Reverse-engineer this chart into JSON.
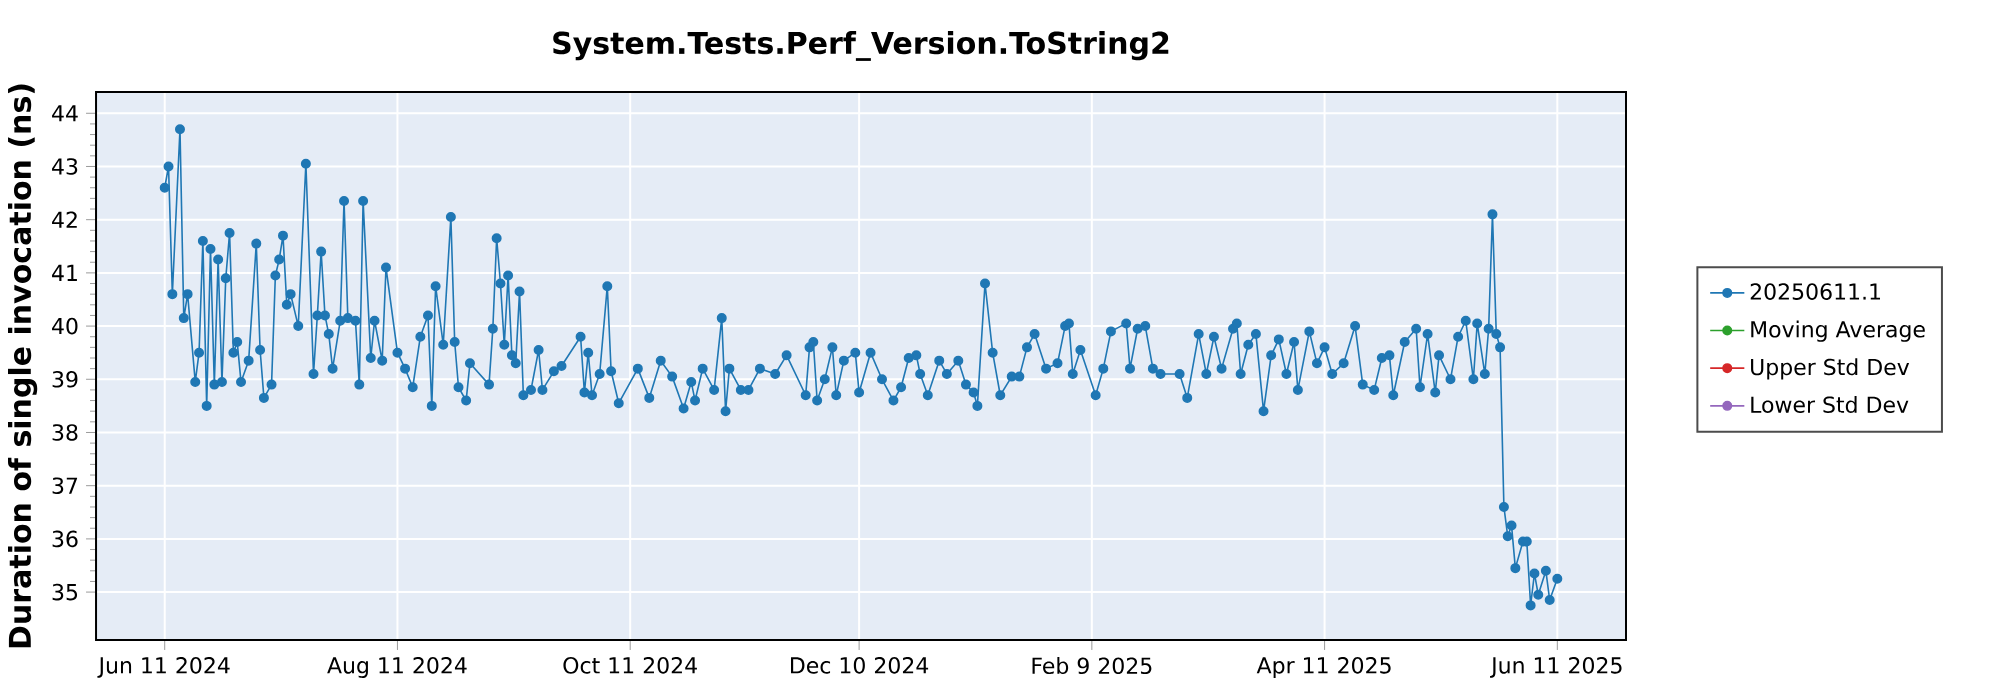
{
  "chart_data": {
    "type": "line",
    "title": "System.Tests.Perf_Version.ToString2",
    "ylabel": "Duration of single invocation (ns)",
    "x": [
      "2024-06-11",
      "2024-06-12",
      "2024-06-13",
      "2024-06-15",
      "2024-06-16",
      "2024-06-17",
      "2024-06-19",
      "2024-06-20",
      "2024-06-21",
      "2024-06-22",
      "2024-06-23",
      "2024-06-24",
      "2024-06-25",
      "2024-06-26",
      "2024-06-27",
      "2024-06-28",
      "2024-06-29",
      "2024-06-30",
      "2024-07-01",
      "2024-07-03",
      "2024-07-05",
      "2024-07-06",
      "2024-07-07",
      "2024-07-09",
      "2024-07-10",
      "2024-07-11",
      "2024-07-12",
      "2024-07-13",
      "2024-07-14",
      "2024-07-16",
      "2024-07-18",
      "2024-07-20",
      "2024-07-21",
      "2024-07-22",
      "2024-07-23",
      "2024-07-24",
      "2024-07-25",
      "2024-07-27",
      "2024-07-28",
      "2024-07-29",
      "2024-07-31",
      "2024-08-01",
      "2024-08-02",
      "2024-08-04",
      "2024-08-05",
      "2024-08-07",
      "2024-08-08",
      "2024-08-11",
      "2024-08-13",
      "2024-08-15",
      "2024-08-17",
      "2024-08-19",
      "2024-08-20",
      "2024-08-21",
      "2024-08-23",
      "2024-08-25",
      "2024-08-26",
      "2024-08-27",
      "2024-08-29",
      "2024-08-30",
      "2024-09-04",
      "2024-09-05",
      "2024-09-06",
      "2024-09-07",
      "2024-09-08",
      "2024-09-09",
      "2024-09-10",
      "2024-09-11",
      "2024-09-12",
      "2024-09-13",
      "2024-09-15",
      "2024-09-17",
      "2024-09-18",
      "2024-09-21",
      "2024-09-23",
      "2024-09-28",
      "2024-09-29",
      "2024-09-30",
      "2024-10-01",
      "2024-10-03",
      "2024-10-05",
      "2024-10-06",
      "2024-10-08",
      "2024-10-13",
      "2024-10-16",
      "2024-10-19",
      "2024-10-22",
      "2024-10-25",
      "2024-10-27",
      "2024-10-28",
      "2024-10-30",
      "2024-11-02",
      "2024-11-04",
      "2024-11-05",
      "2024-11-06",
      "2024-11-09",
      "2024-11-11",
      "2024-11-14",
      "2024-11-18",
      "2024-11-21",
      "2024-11-26",
      "2024-11-27",
      "2024-11-28",
      "2024-11-29",
      "2024-12-01",
      "2024-12-03",
      "2024-12-04",
      "2024-12-06",
      "2024-12-09",
      "2024-12-10",
      "2024-12-13",
      "2024-12-16",
      "2024-12-19",
      "2024-12-21",
      "2024-12-23",
      "2024-12-25",
      "2024-12-26",
      "2024-12-28",
      "2024-12-31",
      "2025-01-02",
      "2025-01-05",
      "2025-01-07",
      "2025-01-09",
      "2025-01-10",
      "2025-01-12",
      "2025-01-14",
      "2025-01-16",
      "2025-01-19",
      "2025-01-21",
      "2025-01-23",
      "2025-01-25",
      "2025-01-28",
      "2025-01-31",
      "2025-02-02",
      "2025-02-03",
      "2025-02-04",
      "2025-02-06",
      "2025-02-10",
      "2025-02-12",
      "2025-02-14",
      "2025-02-18",
      "2025-02-19",
      "2025-02-21",
      "2025-02-23",
      "2025-02-25",
      "2025-02-27",
      "2025-03-04",
      "2025-03-06",
      "2025-03-09",
      "2025-03-11",
      "2025-03-13",
      "2025-03-15",
      "2025-03-18",
      "2025-03-19",
      "2025-03-20",
      "2025-03-22",
      "2025-03-24",
      "2025-03-26",
      "2025-03-28",
      "2025-03-30",
      "2025-04-01",
      "2025-04-03",
      "2025-04-04",
      "2025-04-07",
      "2025-04-09",
      "2025-04-11",
      "2025-04-13",
      "2025-04-16",
      "2025-04-19",
      "2025-04-21",
      "2025-04-24",
      "2025-04-26",
      "2025-04-28",
      "2025-04-29",
      "2025-05-02",
      "2025-05-05",
      "2025-05-06",
      "2025-05-08",
      "2025-05-10",
      "2025-05-11",
      "2025-05-14",
      "2025-05-16",
      "2025-05-18",
      "2025-05-20",
      "2025-05-21",
      "2025-05-23",
      "2025-05-24",
      "2025-05-25",
      "2025-05-26",
      "2025-05-27",
      "2025-05-28",
      "2025-05-29",
      "2025-05-30",
      "2025-05-31",
      "2025-06-02",
      "2025-06-03",
      "2025-06-04",
      "2025-06-05",
      "2025-06-06",
      "2025-06-08",
      "2025-06-09",
      "2025-06-11"
    ],
    "series": [
      {
        "name": "20250611.1",
        "color": "#1f77b4",
        "values": [
          42.6,
          43.0,
          40.6,
          43.7,
          40.15,
          40.6,
          38.95,
          39.5,
          41.6,
          38.5,
          41.45,
          38.9,
          41.25,
          38.95,
          40.9,
          41.75,
          39.5,
          39.7,
          38.95,
          39.35,
          41.55,
          39.55,
          38.65,
          38.9,
          40.95,
          41.25,
          41.7,
          40.4,
          40.6,
          40.0,
          43.05,
          39.1,
          40.2,
          41.4,
          40.2,
          39.85,
          39.2,
          40.1,
          42.35,
          40.15,
          40.1,
          38.9,
          42.35,
          39.4,
          40.1,
          39.35,
          41.1,
          39.5,
          39.2,
          38.85,
          39.8,
          40.2,
          38.5,
          40.75,
          39.65,
          42.05,
          39.7,
          38.85,
          38.6,
          39.3,
          38.9,
          39.95,
          41.65,
          40.8,
          39.65,
          40.95,
          39.45,
          39.3,
          40.65,
          38.7,
          38.8,
          39.55,
          38.8,
          39.15,
          39.25,
          39.8,
          38.75,
          39.5,
          38.7,
          39.1,
          40.75,
          39.15,
          38.55,
          39.2,
          38.65,
          39.35,
          39.05,
          38.45,
          38.95,
          38.6,
          39.2,
          38.8,
          40.15,
          38.4,
          39.2,
          38.8,
          38.8,
          39.2,
          39.1,
          39.45,
          38.7,
          39.6,
          39.7,
          38.6,
          39.0,
          39.6,
          38.7,
          39.35,
          39.5,
          38.75,
          39.5,
          39.0,
          38.6,
          38.85,
          39.4,
          39.45,
          39.1,
          38.7,
          39.35,
          39.1,
          39.35,
          38.9,
          38.75,
          38.5,
          40.8,
          39.5,
          38.7,
          39.05,
          39.05,
          39.6,
          39.85,
          39.2,
          39.3,
          40.0,
          40.05,
          39.1,
          39.55,
          38.7,
          39.2,
          39.9,
          40.05,
          39.2,
          39.95,
          40.0,
          39.2,
          39.1,
          39.1,
          38.65,
          39.85,
          39.1,
          39.8,
          39.2,
          39.95,
          40.05,
          39.1,
          39.65,
          39.85,
          38.4,
          39.45,
          39.75,
          39.1,
          39.7,
          38.8,
          39.9,
          39.3,
          39.6,
          39.1,
          39.3,
          40.0,
          38.9,
          38.8,
          39.4,
          39.45,
          38.7,
          39.7,
          39.95,
          38.85,
          39.85,
          38.75,
          39.45,
          39.0,
          39.8,
          40.1,
          39.0,
          40.05,
          39.1,
          39.95,
          42.1,
          39.85,
          39.6,
          36.6,
          36.05,
          36.25,
          35.45,
          35.95,
          35.95,
          34.75,
          35.35,
          34.95,
          35.4,
          34.85,
          35.25
        ]
      },
      {
        "name": "Moving Average",
        "color": "#2ca02c",
        "values": [
          null,
          null,
          null,
          null,
          null,
          null,
          null,
          null,
          null,
          null,
          null,
          null,
          null,
          null,
          null,
          null,
          null,
          null,
          null,
          null,
          null,
          null,
          null,
          null,
          null,
          null,
          null,
          null,
          null,
          null,
          null,
          null,
          null,
          null,
          null,
          null,
          null,
          null,
          null,
          null,
          null,
          null,
          null,
          null,
          null,
          null,
          null,
          null,
          null,
          null,
          null,
          null,
          null,
          null,
          null,
          null,
          null,
          null,
          null,
          null,
          null,
          null,
          null,
          null,
          null,
          null,
          null,
          null,
          null,
          null,
          null,
          null,
          null,
          null,
          null,
          null,
          null,
          null,
          null,
          null,
          null,
          null,
          null,
          null,
          null,
          null,
          null,
          null,
          null,
          null,
          null,
          null,
          null,
          null,
          null,
          null,
          null,
          null,
          null,
          null,
          null,
          null,
          null,
          null,
          null,
          null,
          null,
          null,
          null,
          null,
          null,
          null,
          null,
          null,
          null,
          null,
          null,
          null,
          null,
          null,
          null,
          null,
          null,
          null,
          null,
          null,
          null,
          null,
          null,
          null,
          null,
          null,
          null,
          null,
          null,
          null,
          null,
          null,
          null,
          null,
          null,
          null,
          null,
          null,
          null,
          null,
          null,
          null,
          null,
          null,
          null,
          null,
          null,
          null,
          null,
          null,
          null,
          null,
          null,
          null,
          null,
          null,
          null,
          null,
          null,
          null,
          null,
          null,
          null,
          null,
          null,
          null,
          null,
          null,
          null,
          null,
          null,
          null,
          null,
          null,
          null,
          null,
          null,
          null,
          null,
          null,
          null,
          null,
          null,
          null,
          null,
          null,
          null,
          null,
          null,
          null,
          null,
          null,
          null,
          null,
          null,
          null
        ]
      },
      {
        "name": "Upper Std Dev",
        "color": "#d62728",
        "values": [
          null,
          null,
          null,
          null,
          null,
          null,
          null,
          null,
          null,
          null,
          null,
          null,
          null,
          null,
          null,
          null,
          null,
          null,
          null,
          null,
          null,
          null,
          null,
          null,
          null,
          null,
          null,
          null,
          null,
          null,
          null,
          null,
          null,
          null,
          null,
          null,
          null,
          null,
          null,
          null,
          null,
          null,
          null,
          null,
          null,
          null,
          null,
          null,
          null,
          null,
          null,
          null,
          null,
          null,
          null,
          null,
          null,
          null,
          null,
          null,
          null,
          null,
          null,
          null,
          null,
          null,
          null,
          null,
          null,
          null,
          null,
          null,
          null,
          null,
          null,
          null,
          null,
          null,
          null,
          null,
          null,
          null,
          null,
          null,
          null,
          null,
          null,
          null,
          null,
          null,
          null,
          null,
          null,
          null,
          null,
          null,
          null,
          null,
          null,
          null,
          null,
          null,
          null,
          null,
          null,
          null,
          null,
          null,
          null,
          null,
          null,
          null,
          null,
          null,
          null,
          null,
          null,
          null,
          null,
          null,
          null,
          null,
          null,
          null,
          null,
          null,
          null,
          null,
          null,
          null,
          null,
          null,
          null,
          null,
          null,
          null,
          null,
          null,
          null,
          null,
          null,
          null,
          null,
          null,
          null,
          null,
          null,
          null,
          null,
          null,
          null,
          null,
          null,
          null,
          null,
          null,
          null,
          null,
          null,
          null,
          null,
          null,
          null,
          null,
          null,
          null,
          null,
          null,
          null,
          null,
          null,
          null,
          null,
          null,
          null,
          null,
          null,
          null,
          null,
          null,
          null,
          null,
          null,
          null,
          null,
          null,
          null,
          null,
          null,
          null,
          null,
          null,
          null,
          null,
          null,
          null,
          null,
          null,
          null,
          null,
          null,
          null
        ]
      },
      {
        "name": "Lower Std Dev",
        "color": "#9467bd",
        "values": [
          null,
          null,
          null,
          null,
          null,
          null,
          null,
          null,
          null,
          null,
          null,
          null,
          null,
          null,
          null,
          null,
          null,
          null,
          null,
          null,
          null,
          null,
          null,
          null,
          null,
          null,
          null,
          null,
          null,
          null,
          null,
          null,
          null,
          null,
          null,
          null,
          null,
          null,
          null,
          null,
          null,
          null,
          null,
          null,
          null,
          null,
          null,
          null,
          null,
          null,
          null,
          null,
          null,
          null,
          null,
          null,
          null,
          null,
          null,
          null,
          null,
          null,
          null,
          null,
          null,
          null,
          null,
          null,
          null,
          null,
          null,
          null,
          null,
          null,
          null,
          null,
          null,
          null,
          null,
          null,
          null,
          null,
          null,
          null,
          null,
          null,
          null,
          null,
          null,
          null,
          null,
          null,
          null,
          null,
          null,
          null,
          null,
          null,
          null,
          null,
          null,
          null,
          null,
          null,
          null,
          null,
          null,
          null,
          null,
          null,
          null,
          null,
          null,
          null,
          null,
          null,
          null,
          null,
          null,
          null,
          null,
          null,
          null,
          null,
          null,
          null,
          null,
          null,
          null,
          null,
          null,
          null,
          null,
          null,
          null,
          null,
          null,
          null,
          null,
          null,
          null,
          null,
          null,
          null,
          null,
          null,
          null,
          null,
          null,
          null,
          null,
          null,
          null,
          null,
          null,
          null,
          null,
          null,
          null,
          null,
          null,
          null,
          null,
          null,
          null,
          null,
          null,
          null,
          null,
          null,
          null,
          null,
          null,
          null,
          null,
          null,
          null,
          null,
          null,
          null,
          null,
          null,
          null,
          null,
          null,
          null,
          null,
          null,
          null,
          null,
          null,
          null,
          null,
          null,
          null,
          null,
          null,
          null,
          null,
          null,
          null,
          null
        ]
      }
    ],
    "xlim": [
      "2024-05-24",
      "2025-06-29"
    ],
    "xticks": [
      {
        "value": "2024-06-11",
        "label": "Jun 11 2024"
      },
      {
        "value": "2024-08-11",
        "label": "Aug 11 2024"
      },
      {
        "value": "2024-10-11",
        "label": "Oct 11 2024"
      },
      {
        "value": "2024-12-10",
        "label": "Dec 10 2024"
      },
      {
        "value": "2025-02-09",
        "label": "Feb 9 2025"
      },
      {
        "value": "2025-04-11",
        "label": "Apr 11 2025"
      },
      {
        "value": "2025-06-11",
        "label": "Jun 11 2025"
      }
    ],
    "ylim": [
      34.1,
      44.4
    ],
    "yticks": [
      35,
      36,
      37,
      38,
      39,
      40,
      41,
      42,
      43,
      44
    ],
    "grid": true,
    "legend": "right",
    "marker": "circle",
    "line_style": "solid"
  }
}
